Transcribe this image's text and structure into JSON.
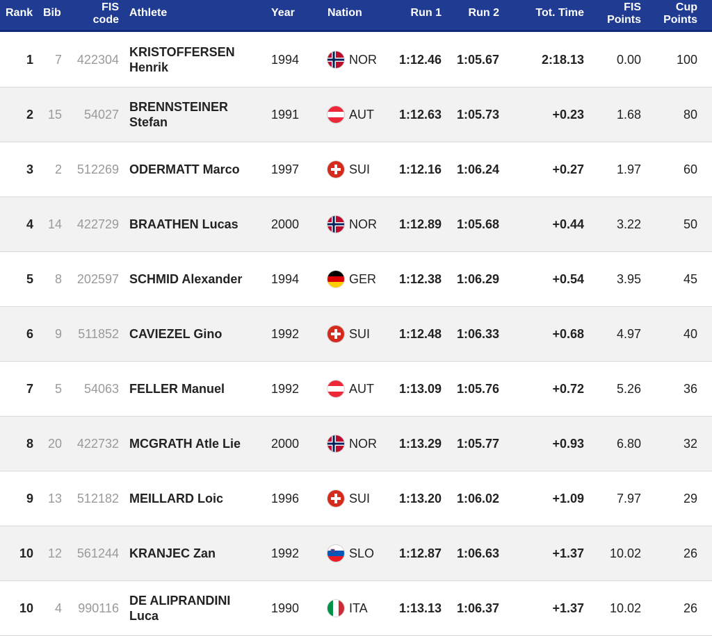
{
  "header": {
    "rank": "Rank",
    "bib": "Bib",
    "fis_line1": "FIS",
    "fis_line2": "code",
    "athlete": "Athlete",
    "year": "Year",
    "nation": "Nation",
    "run1": "Run 1",
    "run2": "Run 2",
    "total": "Tot. Time",
    "fis_points_line1": "FIS",
    "fis_points_line2": "Points",
    "cup_points_line1": "Cup",
    "cup_points_line2": "Points"
  },
  "colors": {
    "header_bg": "#1f3b92",
    "row_alt_bg": "#f2f2f2"
  },
  "rows": [
    {
      "rank": "1",
      "bib": "7",
      "fis": "422304",
      "athlete_1": "KRISTOFFERSEN",
      "athlete_2": "Henrik",
      "year": "1994",
      "flag": "nor-flag",
      "nation": "NOR",
      "run1": "1:12.46",
      "run2": "1:05.67",
      "total": "2:18.13",
      "fis_points": "0.00",
      "cup_points": "100"
    },
    {
      "rank": "2",
      "bib": "15",
      "fis": "54027",
      "athlete_1": "BRENNSTEINER",
      "athlete_2": "Stefan",
      "year": "1991",
      "flag": "aut-flag",
      "nation": "AUT",
      "run1": "1:12.63",
      "run2": "1:05.73",
      "total": "+0.23",
      "fis_points": "1.68",
      "cup_points": "80"
    },
    {
      "rank": "3",
      "bib": "2",
      "fis": "512269",
      "athlete_1": "ODERMATT Marco",
      "athlete_2": "",
      "year": "1997",
      "flag": "sui-flag",
      "nation": "SUI",
      "run1": "1:12.16",
      "run2": "1:06.24",
      "total": "+0.27",
      "fis_points": "1.97",
      "cup_points": "60"
    },
    {
      "rank": "4",
      "bib": "14",
      "fis": "422729",
      "athlete_1": "BRAATHEN Lucas",
      "athlete_2": "",
      "year": "2000",
      "flag": "nor-flag",
      "nation": "NOR",
      "run1": "1:12.89",
      "run2": "1:05.68",
      "total": "+0.44",
      "fis_points": "3.22",
      "cup_points": "50"
    },
    {
      "rank": "5",
      "bib": "8",
      "fis": "202597",
      "athlete_1": "SCHMID Alexander",
      "athlete_2": "",
      "year": "1994",
      "flag": "ger-flag",
      "nation": "GER",
      "run1": "1:12.38",
      "run2": "1:06.29",
      "total": "+0.54",
      "fis_points": "3.95",
      "cup_points": "45"
    },
    {
      "rank": "6",
      "bib": "9",
      "fis": "511852",
      "athlete_1": "CAVIEZEL Gino",
      "athlete_2": "",
      "year": "1992",
      "flag": "sui-flag",
      "nation": "SUI",
      "run1": "1:12.48",
      "run2": "1:06.33",
      "total": "+0.68",
      "fis_points": "4.97",
      "cup_points": "40"
    },
    {
      "rank": "7",
      "bib": "5",
      "fis": "54063",
      "athlete_1": "FELLER Manuel",
      "athlete_2": "",
      "year": "1992",
      "flag": "aut-flag",
      "nation": "AUT",
      "run1": "1:13.09",
      "run2": "1:05.76",
      "total": "+0.72",
      "fis_points": "5.26",
      "cup_points": "36"
    },
    {
      "rank": "8",
      "bib": "20",
      "fis": "422732",
      "athlete_1": "MCGRATH Atle Lie",
      "athlete_2": "",
      "year": "2000",
      "flag": "nor-flag",
      "nation": "NOR",
      "run1": "1:13.29",
      "run2": "1:05.77",
      "total": "+0.93",
      "fis_points": "6.80",
      "cup_points": "32"
    },
    {
      "rank": "9",
      "bib": "13",
      "fis": "512182",
      "athlete_1": "MEILLARD Loic",
      "athlete_2": "",
      "year": "1996",
      "flag": "sui-flag",
      "nation": "SUI",
      "run1": "1:13.20",
      "run2": "1:06.02",
      "total": "+1.09",
      "fis_points": "7.97",
      "cup_points": "29"
    },
    {
      "rank": "10",
      "bib": "12",
      "fis": "561244",
      "athlete_1": "KRANJEC Zan",
      "athlete_2": "",
      "year": "1992",
      "flag": "slo-flag",
      "nation": "SLO",
      "run1": "1:12.87",
      "run2": "1:06.63",
      "total": "+1.37",
      "fis_points": "10.02",
      "cup_points": "26"
    },
    {
      "rank": "10",
      "bib": "4",
      "fis": "990116",
      "athlete_1": "DE ALIPRANDINI",
      "athlete_2": "Luca",
      "year": "1990",
      "flag": "ita-flag",
      "nation": "ITA",
      "run1": "1:13.13",
      "run2": "1:06.37",
      "total": "+1.37",
      "fis_points": "10.02",
      "cup_points": "26"
    }
  ]
}
